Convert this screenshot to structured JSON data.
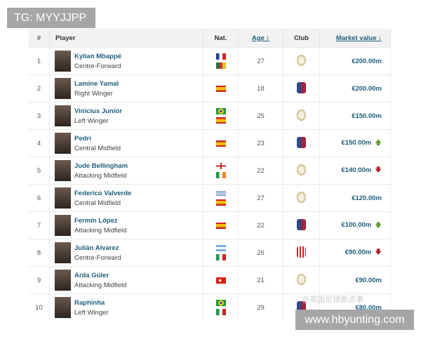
{
  "watermark_top": "TG: MYYJJPP",
  "watermark_bottom": "www.hbyunting.com",
  "watermark_weibo": "@英国足球那点事",
  "headers": {
    "rank": "#",
    "player": "Player",
    "nat": "Nat.",
    "age": "Age ↕",
    "club": "Club",
    "value": "Market value ↓"
  },
  "rows": [
    {
      "rank": "1",
      "name": "Kylian Mbappé",
      "position": "Centre-Forward",
      "flags": [
        "france",
        "cameroon"
      ],
      "age": "27",
      "club": "real-madrid",
      "value": "€200.00m",
      "trend": ""
    },
    {
      "rank": "2",
      "name": "Lamine Yamal",
      "position": "Right Winger",
      "flags": [
        "spain"
      ],
      "age": "18",
      "club": "barcelona",
      "value": "€200.00m",
      "trend": ""
    },
    {
      "rank": "3",
      "name": "Vinicius Junior",
      "position": "Left Winger",
      "flags": [
        "brazil",
        "spain"
      ],
      "age": "25",
      "club": "real-madrid",
      "value": "€150.00m",
      "trend": ""
    },
    {
      "rank": "4",
      "name": "Pedri",
      "position": "Central Midfield",
      "flags": [
        "spain"
      ],
      "age": "23",
      "club": "barcelona",
      "value": "€150.00m",
      "trend": "up"
    },
    {
      "rank": "5",
      "name": "Jude Bellingham",
      "position": "Attacking Midfield",
      "flags": [
        "england",
        "ireland"
      ],
      "age": "22",
      "club": "real-madrid",
      "value": "€140.00m",
      "trend": "down"
    },
    {
      "rank": "6",
      "name": "Federico Valverde",
      "position": "Central Midfield",
      "flags": [
        "uruguay",
        "spain"
      ],
      "age": "27",
      "club": "real-madrid",
      "value": "€120.00m",
      "trend": ""
    },
    {
      "rank": "7",
      "name": "Fermín López",
      "position": "Attacking Midfield",
      "flags": [
        "spain"
      ],
      "age": "22",
      "club": "barcelona",
      "value": "€100.00m",
      "trend": "up"
    },
    {
      "rank": "8",
      "name": "Julián Alvarez",
      "position": "Centre-Forward",
      "flags": [
        "argentina",
        "italy"
      ],
      "age": "26",
      "club": "atletico-madrid",
      "value": "€90.00m",
      "trend": "down"
    },
    {
      "rank": "9",
      "name": "Arda Güler",
      "position": "Attacking Midfield",
      "flags": [
        "turkey"
      ],
      "age": "21",
      "club": "real-madrid",
      "value": "€90.00m",
      "trend": ""
    },
    {
      "rank": "10",
      "name": "Raphinha",
      "position": "Left Winger",
      "flags": [
        "brazil",
        "italy"
      ],
      "age": "29",
      "club": "barcelona",
      "value": "€80.00m",
      "trend": ""
    }
  ]
}
